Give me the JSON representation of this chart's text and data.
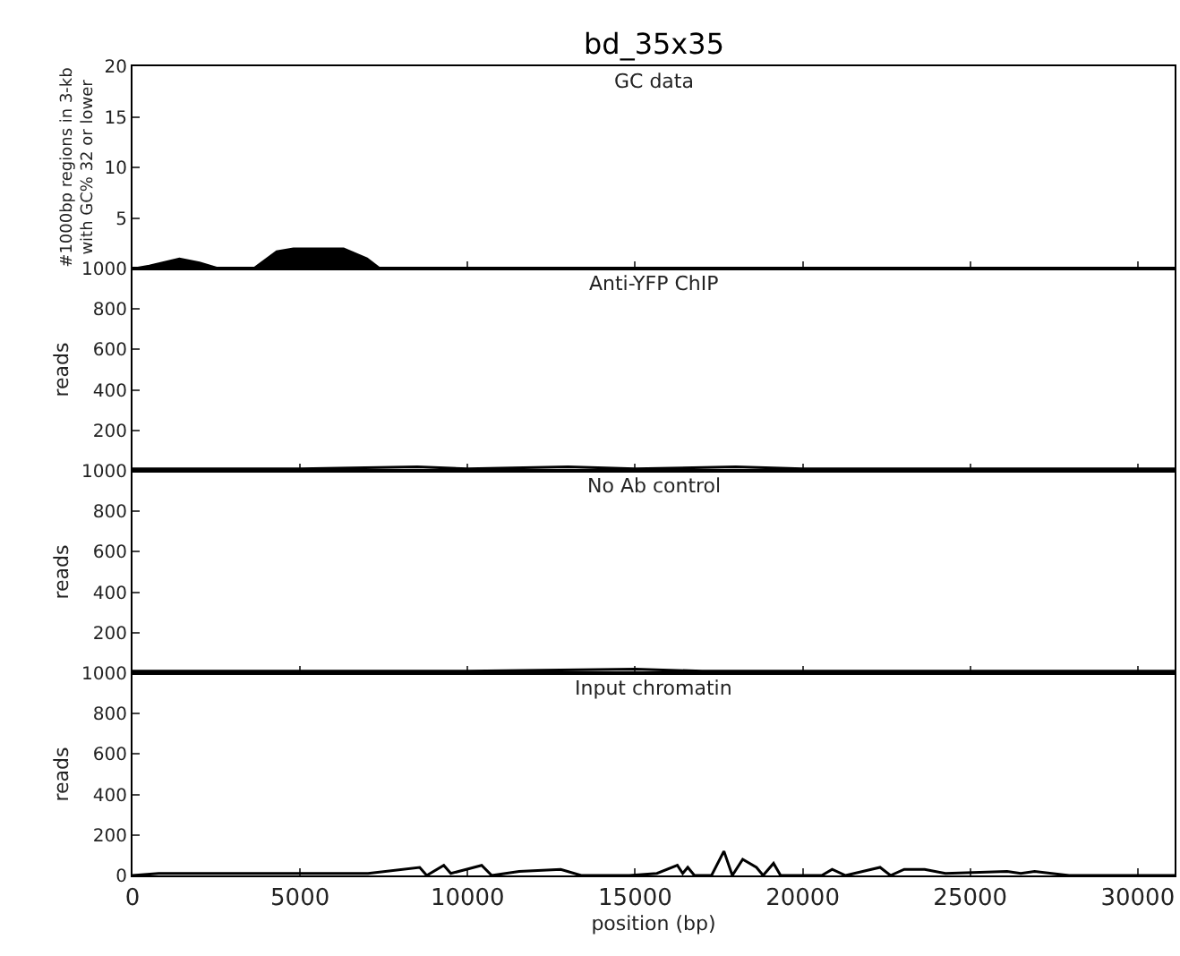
{
  "chart_data": [
    {
      "type": "area",
      "title": "bd_35x35",
      "subtitle": "GC data",
      "ylabel": "#1000bp regions in 3-kb\nwith GC% 32 or lower",
      "x": [
        0,
        500,
        1400,
        2000,
        2600,
        3600,
        4300,
        4800,
        6300,
        7000,
        7400,
        31100
      ],
      "values": [
        0,
        0.3,
        1,
        0.6,
        0,
        0,
        1.7,
        2,
        2,
        1,
        0,
        0
      ],
      "color": "#000000",
      "xlim": [
        0,
        31100
      ],
      "xticks": [
        0,
        5000,
        10000,
        15000,
        20000,
        25000,
        30000
      ],
      "ylim": [
        0,
        20
      ],
      "yticks": [
        5,
        10,
        15,
        20
      ],
      "tick_labels": "y",
      "grid": false
    },
    {
      "type": "line",
      "title": "Anti-YFP ChIP",
      "ylabel": "reads",
      "x": [
        0,
        5000,
        8500,
        10000,
        13000,
        15000,
        18000,
        20000,
        25000,
        31100
      ],
      "values": [
        10,
        10,
        20,
        10,
        20,
        10,
        20,
        10,
        10,
        10
      ],
      "color": "#000000",
      "xlim": [
        0,
        31100
      ],
      "xticks": [
        0,
        5000,
        10000,
        15000,
        20000,
        25000,
        30000
      ],
      "ylim": [
        0,
        1000
      ],
      "yticks": [
        200,
        400,
        600,
        800,
        1000
      ],
      "tick_labels": "y",
      "grid": false
    },
    {
      "type": "line",
      "title": "No Ab control",
      "ylabel": "reads",
      "x": [
        0,
        5000,
        10000,
        15000,
        17000,
        20000,
        25000,
        31100
      ],
      "values": [
        10,
        10,
        10,
        20,
        10,
        10,
        10,
        10
      ],
      "color": "#000000",
      "xlim": [
        0,
        31100
      ],
      "xticks": [
        0,
        5000,
        10000,
        15000,
        20000,
        25000,
        30000
      ],
      "ylim": [
        0,
        1000
      ],
      "yticks": [
        200,
        400,
        600,
        800,
        1000
      ],
      "tick_labels": "y",
      "grid": false
    },
    {
      "type": "line",
      "title": "Input chromatin",
      "xlabel": "position (bp)",
      "ylabel": "reads",
      "x": [
        0,
        780,
        1700,
        3960,
        7030,
        8570,
        8780,
        9290,
        9500,
        10420,
        10720,
        11540,
        12780,
        13390,
        14830,
        15650,
        16260,
        16420,
        16570,
        16770,
        17280,
        17650,
        17900,
        18210,
        18620,
        18820,
        19130,
        19340,
        20570,
        20880,
        21280,
        22310,
        22620,
        23030,
        23640,
        24260,
        26100,
        26510,
        26920,
        27950,
        31100
      ],
      "values": [
        0,
        10,
        10,
        10,
        10,
        40,
        0,
        50,
        10,
        50,
        0,
        20,
        30,
        0,
        0,
        10,
        50,
        10,
        40,
        0,
        0,
        120,
        0,
        80,
        40,
        0,
        60,
        0,
        0,
        30,
        0,
        40,
        0,
        30,
        30,
        10,
        20,
        10,
        20,
        0,
        0
      ],
      "color": "#000000",
      "xlim": [
        0,
        31100
      ],
      "xticks": [
        0,
        5000,
        10000,
        15000,
        20000,
        25000,
        30000
      ],
      "ylim": [
        0,
        1000
      ],
      "yticks": [
        0,
        200,
        400,
        600,
        800,
        1000
      ],
      "grid": false
    }
  ]
}
